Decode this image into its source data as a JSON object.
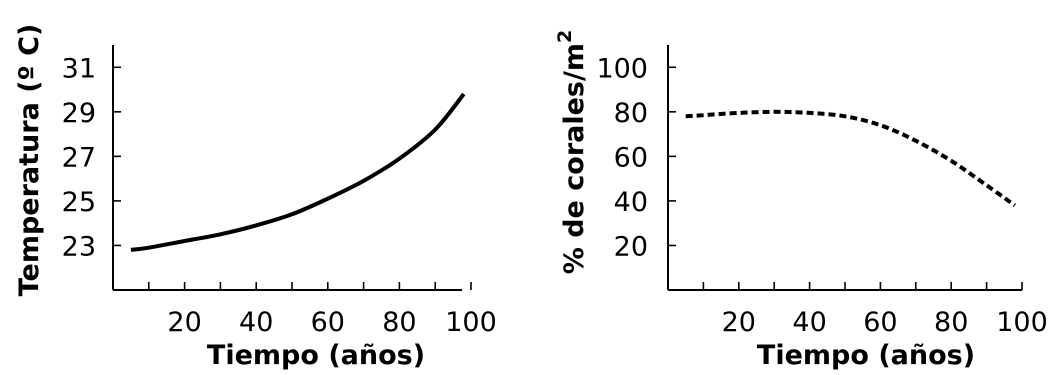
{
  "chart_data": [
    {
      "type": "line",
      "xlabel": "Tiempo (años)",
      "ylabel": "Temperatura (º C)",
      "xlim": [
        0,
        100
      ],
      "ylim": [
        21,
        32
      ],
      "x_ticks": [
        10,
        20,
        30,
        40,
        50,
        60,
        70,
        80,
        90,
        100
      ],
      "x_tick_labels": [
        "20",
        "40",
        "60",
        "80",
        "100"
      ],
      "y_ticks": [
        23,
        25,
        27,
        29,
        31
      ],
      "y_tick_labels": [
        "23",
        "25",
        "27",
        "29",
        "31"
      ],
      "line_style": "solid",
      "series": [
        {
          "x": [
            5,
            10,
            20,
            30,
            40,
            50,
            60,
            70,
            80,
            90,
            98
          ],
          "y": [
            22.8,
            22.9,
            23.2,
            23.5,
            23.9,
            24.4,
            25.1,
            25.9,
            26.9,
            28.2,
            29.8
          ]
        }
      ]
    },
    {
      "type": "line",
      "xlabel": "Tiempo (años)",
      "ylabel": "% de corales/m",
      "ylabel_sup": "2",
      "xlim": [
        0,
        100
      ],
      "ylim": [
        0,
        110
      ],
      "x_ticks": [
        10,
        20,
        30,
        40,
        50,
        60,
        70,
        80,
        90,
        100
      ],
      "x_tick_labels": [
        "20",
        "40",
        "60",
        "80",
        "100"
      ],
      "y_ticks": [
        20,
        40,
        60,
        80,
        100
      ],
      "y_tick_labels": [
        "20",
        "40",
        "60",
        "80",
        "100"
      ],
      "line_style": "dashed",
      "series": [
        {
          "x": [
            5,
            10,
            20,
            30,
            40,
            50,
            60,
            70,
            80,
            90,
            98
          ],
          "y": [
            78,
            78.5,
            79.5,
            80,
            79.5,
            78,
            74,
            67,
            58,
            47,
            38
          ]
        }
      ]
    }
  ]
}
